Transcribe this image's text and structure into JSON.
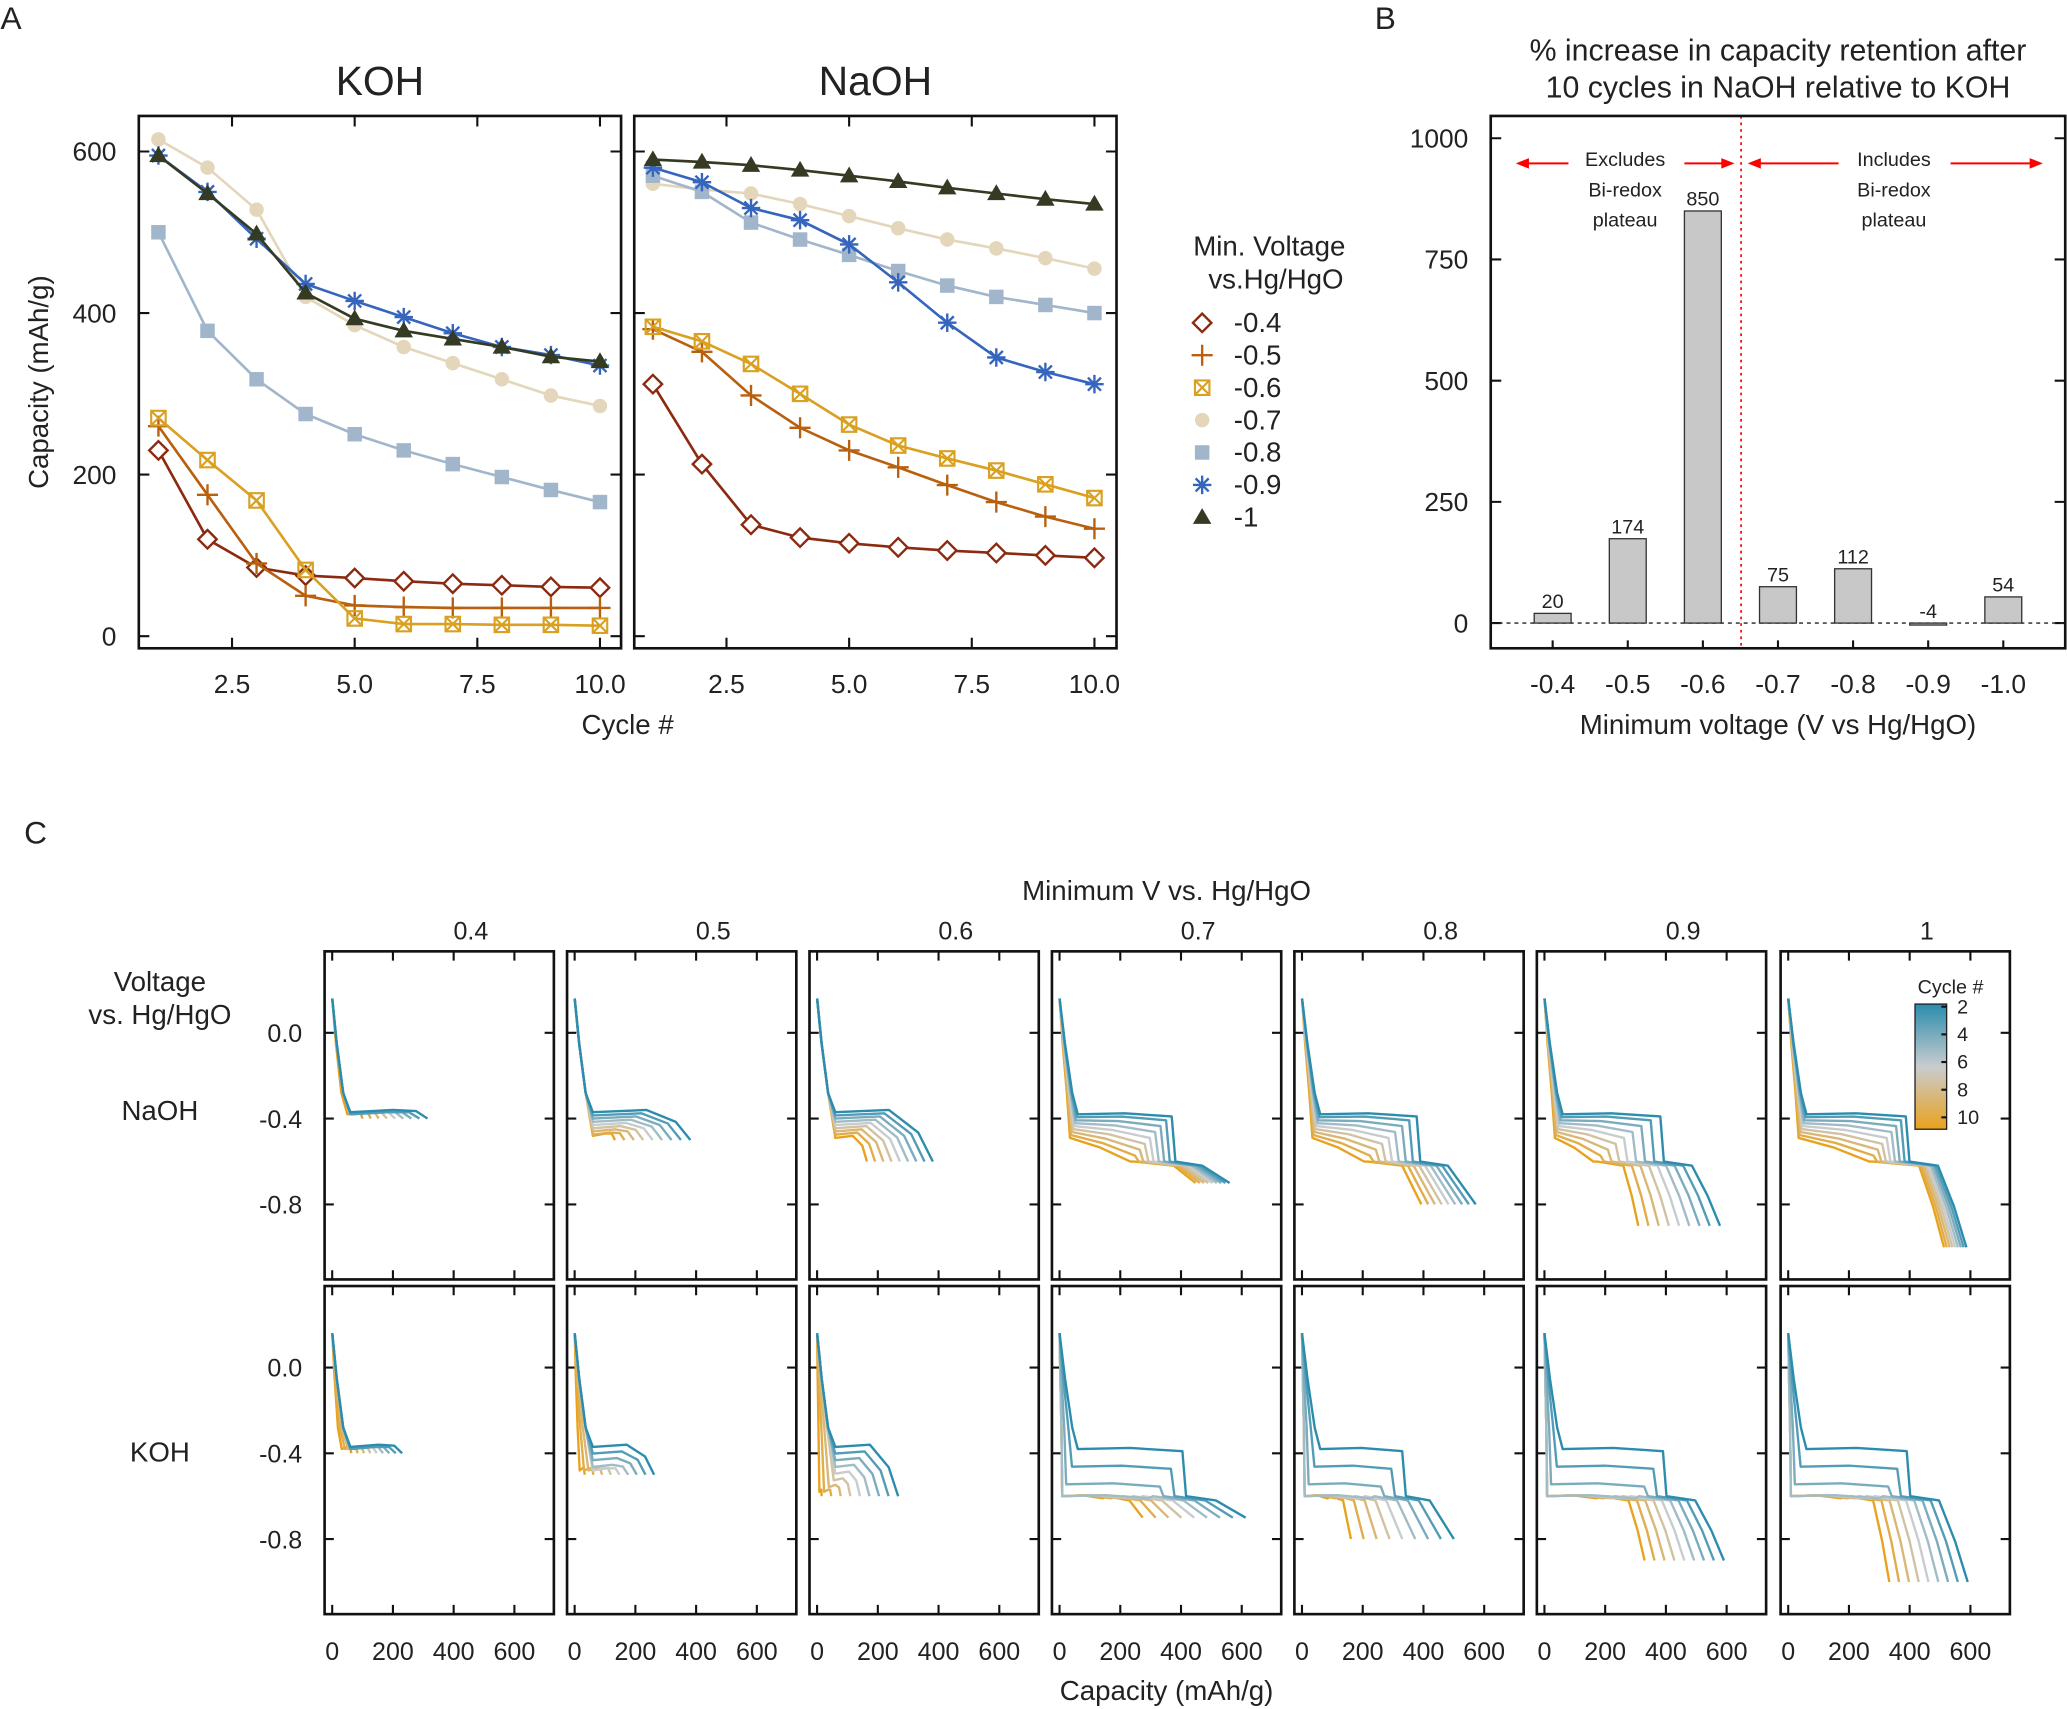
{
  "panel_labels": {
    "a": "A",
    "b": "B",
    "c": "C"
  },
  "chart_data": [
    {
      "type": "line",
      "panel": "A",
      "title": "KOH",
      "xlabel": "Cycle #",
      "ylabel": "Capacity (mAh/g)",
      "x": [
        1,
        2,
        3,
        4,
        5,
        6,
        7,
        8,
        9,
        10
      ],
      "xlim": [
        0.6,
        10.43
      ],
      "ylim": [
        -15,
        644
      ],
      "xticks": [
        "2.5",
        "5.0",
        "7.5",
        "10.0"
      ],
      "yticks": [
        "0",
        "200",
        "400",
        "600"
      ],
      "series": [
        {
          "name": "-0.4",
          "values": [
            230,
            120,
            85,
            75,
            72,
            68,
            65,
            63,
            61,
            60
          ]
        },
        {
          "name": "-0.5",
          "values": [
            260,
            175,
            90,
            50,
            38,
            36,
            35,
            35,
            35,
            35
          ]
        },
        {
          "name": "-0.6",
          "values": [
            270,
            218,
            168,
            82,
            22,
            15,
            15,
            14,
            14,
            13
          ]
        },
        {
          "name": "-0.7",
          "values": [
            615,
            580,
            528,
            420,
            385,
            358,
            338,
            318,
            298,
            285
          ]
        },
        {
          "name": "-0.8",
          "values": [
            500,
            378,
            318,
            275,
            250,
            230,
            213,
            197,
            181,
            166
          ]
        },
        {
          "name": "-0.9",
          "values": [
            595,
            550,
            492,
            436,
            415,
            395,
            375,
            358,
            348,
            335
          ]
        },
        {
          "name": "-1",
          "values": [
            595,
            548,
            498,
            425,
            393,
            378,
            368,
            358,
            346,
            340
          ]
        }
      ]
    },
    {
      "type": "line",
      "panel": "A",
      "title": "NaOH",
      "x": [
        1,
        2,
        3,
        4,
        5,
        6,
        7,
        8,
        9,
        10
      ],
      "xlim": [
        0.62,
        10.45
      ],
      "ylim": [
        -15,
        644
      ],
      "xticks": [
        "2.5",
        "5.0",
        "7.5",
        "10.0"
      ],
      "series": [
        {
          "name": "-0.4",
          "values": [
            312,
            213,
            138,
            122,
            115,
            110,
            106,
            103,
            100,
            97
          ]
        },
        {
          "name": "-0.5",
          "values": [
            380,
            352,
            298,
            258,
            230,
            209,
            187,
            166,
            148,
            133
          ]
        },
        {
          "name": "-0.6",
          "values": [
            383,
            365,
            337,
            300,
            262,
            236,
            220,
            205,
            188,
            171
          ]
        },
        {
          "name": "-0.7",
          "values": [
            560,
            553,
            548,
            535,
            520,
            505,
            491,
            480,
            468,
            455
          ]
        },
        {
          "name": "-0.8",
          "values": [
            570,
            550,
            512,
            491,
            472,
            452,
            434,
            420,
            410,
            400
          ]
        },
        {
          "name": "-0.9",
          "values": [
            580,
            562,
            530,
            515,
            485,
            438,
            388,
            345,
            327,
            312
          ]
        },
        {
          "name": "-1",
          "values": [
            590,
            587,
            583,
            577,
            570,
            563,
            555,
            548,
            541,
            535
          ]
        }
      ]
    },
    {
      "type": "bar",
      "panel": "B",
      "title_lines": [
        "% increase in capacity retention after",
        "10 cycles in NaOH relative to KOH"
      ],
      "xlabel": "Minimum voltage (V vs Hg/HgO)",
      "categories": [
        "-0.4",
        "-0.5",
        "-0.6",
        "-0.7",
        "-0.8",
        "-0.9",
        "-1.0"
      ],
      "values": [
        20,
        174,
        850,
        75,
        112,
        -4,
        54
      ],
      "ylim": [
        -52,
        1046
      ],
      "yticks": [
        0,
        250,
        500,
        750,
        1000
      ],
      "bar_color": "#c8c8c8",
      "divider_color": "#ff0000",
      "annotations": {
        "left": [
          "Excludes",
          "Bi-redox",
          "plateau"
        ],
        "right": [
          "Includes",
          "Bi-redox",
          "plateau"
        ]
      }
    },
    {
      "type": "line",
      "panel": "C",
      "title": "Minimum V vs. Hg/HgO",
      "xlabel": "Capacity (mAh/g)",
      "ylabel_lines": [
        "Voltage",
        "vs. Hg/HgO"
      ],
      "xlim": [
        -25,
        730
      ],
      "ylim": [
        -1.15,
        0.38
      ],
      "xticks": [
        "0",
        "200",
        "400",
        "600"
      ],
      "yticks": [
        "0.0",
        "-0.4",
        "-0.8"
      ],
      "columns": [
        "0.4",
        "0.5",
        "0.6",
        "0.7",
        "0.8",
        "0.9",
        "1"
      ],
      "rows": [
        "NaOH",
        "KOH"
      ],
      "colorbar": {
        "title": "Cycle #",
        "labels": [
          "2",
          "4",
          "6",
          "8",
          "10"
        ],
        "colors": [
          "#2b8cae",
          "#c9ccce",
          "#e9a21e"
        ]
      },
      "panels": [
        {
          "electrolyte": "NaOH",
          "min_v": 0.4,
          "cycle2_capacity": 314,
          "cycle10_capacity": 100
        },
        {
          "electrolyte": "NaOH",
          "min_v": 0.5,
          "cycle2_capacity": 381,
          "cycle10_capacity": 133
        },
        {
          "electrolyte": "NaOH",
          "min_v": 0.6,
          "cycle2_capacity": 381,
          "cycle10_capacity": 164
        },
        {
          "electrolyte": "NaOH",
          "min_v": 0.7,
          "cycle2_capacity": 560,
          "cycle10_capacity": 448
        },
        {
          "electrolyte": "NaOH",
          "min_v": 0.8,
          "cycle2_capacity": 572,
          "cycle10_capacity": 393
        },
        {
          "electrolyte": "NaOH",
          "min_v": 0.9,
          "cycle2_capacity": 578,
          "cycle10_capacity": 309
        },
        {
          "electrolyte": "NaOH",
          "min_v": 1.0,
          "cycle2_capacity": 587,
          "cycle10_capacity": 513
        },
        {
          "electrolyte": "KOH",
          "min_v": 0.4,
          "cycle2_capacity": 230,
          "cycle10_capacity": 63
        },
        {
          "electrolyte": "KOH",
          "min_v": 0.5,
          "cycle2_capacity": 262,
          "cycle10_capacity": 33
        },
        {
          "electrolyte": "KOH",
          "min_v": 0.6,
          "cycle2_capacity": 267,
          "cycle10_capacity": 15
        },
        {
          "electrolyte": "KOH",
          "min_v": 0.7,
          "cycle2_capacity": 613,
          "cycle10_capacity": 274
        },
        {
          "electrolyte": "KOH",
          "min_v": 0.8,
          "cycle2_capacity": 500,
          "cycle10_capacity": 161
        },
        {
          "electrolyte": "KOH",
          "min_v": 0.9,
          "cycle2_capacity": 591,
          "cycle10_capacity": 330
        },
        {
          "electrolyte": "KOH",
          "min_v": 1.0,
          "cycle2_capacity": 591,
          "cycle10_capacity": 333
        }
      ]
    }
  ],
  "legend": {
    "title_lines": [
      "Min. Voltage",
      "vs.Hg/HgO"
    ],
    "entries": [
      {
        "label": "-0.4",
        "marker": "open-diamond",
        "color": "#8b2a10"
      },
      {
        "label": "-0.5",
        "marker": "plus",
        "color": "#b8600f"
      },
      {
        "label": "-0.6",
        "marker": "boxed-x",
        "color": "#d9a021"
      },
      {
        "label": "-0.7",
        "marker": "filled-circle",
        "color": "#e3d6ba"
      },
      {
        "label": "-0.8",
        "marker": "filled-square",
        "color": "#a2b6cb"
      },
      {
        "label": "-0.9",
        "marker": "asterisk",
        "color": "#3565bd"
      },
      {
        "label": "-1",
        "marker": "filled-triangle",
        "color": "#353a22"
      }
    ]
  }
}
